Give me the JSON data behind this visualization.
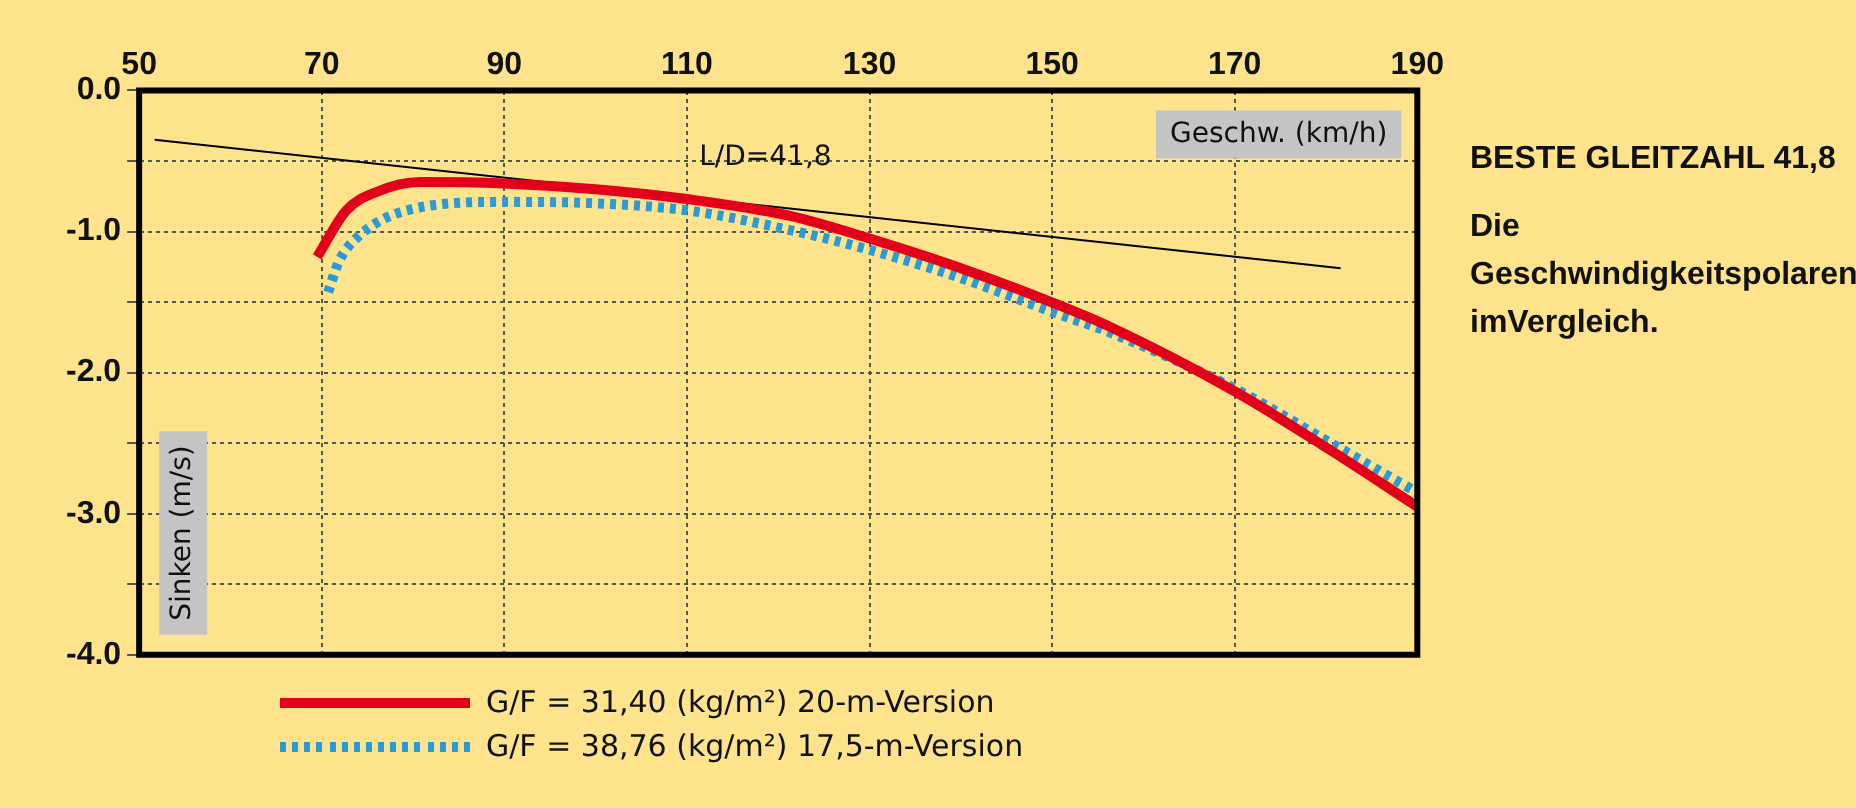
{
  "chart_data": {
    "type": "line",
    "xlabel": "Geschw. (km/h)",
    "ylabel": "Sinken (m/s)",
    "series": [
      {
        "name": "G/F = 31,40 (kg/m²)  20-m-Version",
        "color": "#e3001b",
        "line_style": "solid",
        "x": [
          69.5,
          72.7,
          76,
          80.8,
          90,
          100,
          110,
          121.3,
          130,
          140,
          149.9,
          156.5,
          170.2,
          180,
          190
        ],
        "values": [
          -1.18,
          -0.85,
          -0.72,
          -0.65,
          -0.66,
          -0.7,
          -0.77,
          -0.89,
          -1.05,
          -1.26,
          -1.5,
          -1.68,
          -2.14,
          -2.53,
          -2.95
        ]
      },
      {
        "name": "G/F = 38,76 (kg/m²)  17,5-m-Version",
        "color": "#2a9ad8",
        "line_style": "dotted",
        "x": [
          70.7,
          71.9,
          74.1,
          79.3,
          90,
          100,
          110,
          121.3,
          130,
          140,
          150,
          156.5,
          170.2,
          180,
          190
        ],
        "values": [
          -1.43,
          -1.21,
          -1.03,
          -0.85,
          -0.79,
          -0.8,
          -0.85,
          -0.99,
          -1.13,
          -1.33,
          -1.57,
          -1.72,
          -2.12,
          -2.48,
          -2.85
        ]
      },
      {
        "color": "#000000",
        "line_style": "solid",
        "x": [
          51.7,
          181.6
        ],
        "values": [
          -0.35,
          -1.26
        ]
      }
    ],
    "xlim": [
      50,
      190
    ],
    "xticks": [
      50,
      70,
      90,
      110,
      130,
      150,
      170,
      190
    ],
    "ylim": [
      -4,
      0
    ],
    "yticks": [
      {
        "value": 0,
        "label": "0.0"
      },
      {
        "value": -0.5,
        "label": null
      },
      {
        "value": -1,
        "label": "-1.0"
      },
      {
        "value": -1.5,
        "label": null
      },
      {
        "value": -2,
        "label": "-2.0"
      },
      {
        "value": -2.5,
        "label": null
      },
      {
        "value": -3,
        "label": "-3.0"
      },
      {
        "value": -3.5,
        "label": null
      },
      {
        "value": -4,
        "label": "-4.0"
      }
    ],
    "grid": true,
    "legend": "bottom",
    "marker": "none",
    "annotations": [
      "L/D=41,8",
      "BESTE GLEITZAHL 41,8",
      "Die Geschwindigkeitspolaren imVergleich."
    ]
  }
}
